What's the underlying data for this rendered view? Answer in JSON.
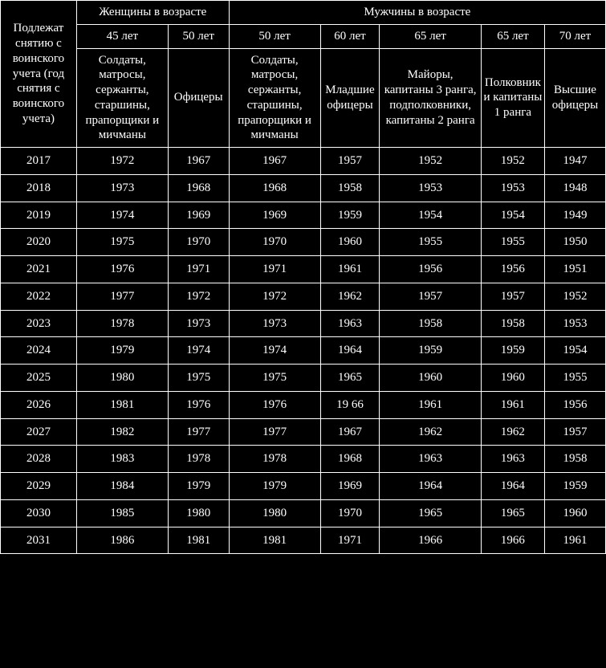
{
  "table": {
    "background_color": "#000000",
    "border_color": "#ffffff",
    "text_color": "#ffffff",
    "font_family": "Times New Roman",
    "header_fontsize": 15,
    "body_fontsize": 15,
    "headers": {
      "col1": "Подлежат снятию с воинского учета (год снятия с воинского учета)",
      "women_group": "Женщины в возрасте",
      "men_group": "Мужчины в возрасте",
      "women_ages": [
        "45 лет",
        "50 лет"
      ],
      "men_ages": [
        "50 лет",
        "60 лет",
        "65 лет",
        "65 лет",
        "70 лет"
      ],
      "women_ranks": [
        "Солдаты, матросы, сержанты, старшины, прапорщики и мичманы",
        "Офицеры"
      ],
      "men_ranks": [
        "Солдаты, матросы, сержанты, старшины, прапорщики и мичманы",
        "Младшие офицеры",
        "Майоры, капитаны 3 ранга, подполковники, капитаны 2 ранга",
        "Полковники капитаны 1 ранга",
        "Высшие офицеры"
      ]
    },
    "rows": [
      [
        "2017",
        "1972",
        "1967",
        "1967",
        "1957",
        "1952",
        "1952",
        "1947"
      ],
      [
        "2018",
        "1973",
        "1968",
        "1968",
        "1958",
        "1953",
        "1953",
        "1948"
      ],
      [
        "2019",
        "1974",
        "1969",
        "1969",
        "1959",
        "1954",
        "1954",
        "1949"
      ],
      [
        "2020",
        "1975",
        "1970",
        "1970",
        "1960",
        "1955",
        "1955",
        "1950"
      ],
      [
        "2021",
        "1976",
        "1971",
        "1971",
        "1961",
        "1956",
        "1956",
        "1951"
      ],
      [
        "2022",
        "1977",
        "1972",
        "1972",
        "1962",
        "1957",
        "1957",
        "1952"
      ],
      [
        "2023",
        "1978",
        "1973",
        "1973",
        "1963",
        "1958",
        "1958",
        "1953"
      ],
      [
        "2024",
        "1979",
        "1974",
        "1974",
        "1964",
        "1959",
        "1959",
        "1954"
      ],
      [
        "2025",
        "1980",
        "1975",
        "1975",
        "1965",
        "1960",
        "1960",
        "1955"
      ],
      [
        "2026",
        "1981",
        "1976",
        "1976",
        "19 66",
        "1961",
        "1961",
        "1956"
      ],
      [
        "2027",
        "1982",
        "1977",
        "1977",
        "1967",
        "1962",
        "1962",
        "1957"
      ],
      [
        "2028",
        "1983",
        "1978",
        "1978",
        "1968",
        "1963",
        "1963",
        "1958"
      ],
      [
        "2029",
        "1984",
        "1979",
        "1979",
        "1969",
        "1964",
        "1964",
        "1959"
      ],
      [
        "2030",
        "1985",
        "1980",
        "1980",
        "1970",
        "1965",
        "1965",
        "1960"
      ],
      [
        "2031",
        "1986",
        "1981",
        "1981",
        "1971",
        "1966",
        "1966",
        "1961"
      ]
    ]
  }
}
